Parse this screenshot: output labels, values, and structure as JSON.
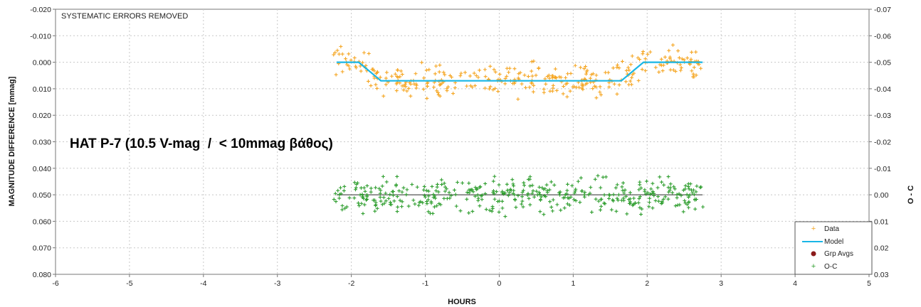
{
  "chart_data": {
    "type": "scatter",
    "corner_label": "SYSTEMATIC ERRORS REMOVED",
    "annotation": "HAT P-7 (10.5 V-mag  /  < 10mmag βάθος)",
    "xlabel": "HOURS",
    "ylabel": "MAGNITUDE DIFFERENCE [mmag]",
    "y2label": "O - C",
    "xlim": [
      -6,
      5
    ],
    "ylim": [
      -0.02,
      0.08
    ],
    "y2lim": [
      -0.07,
      0.03
    ],
    "y_inverted": true,
    "x_ticks": [
      "-6",
      "-5",
      "-4",
      "-3",
      "-2",
      "-1",
      "0",
      "1",
      "2",
      "3",
      "4",
      "5"
    ],
    "y_ticks": [
      "-0.020",
      "-0.010",
      "0.000",
      "0.010",
      "0.020",
      "0.030",
      "0.040",
      "0.050",
      "0.060",
      "0.070",
      "0.080"
    ],
    "y2_ticks": [
      "-0.07",
      "-0.06",
      "-0.05",
      "-0.04",
      "-0.03",
      "-0.02",
      "-0.01",
      "0.00",
      "0.01",
      "0.02",
      "0.03"
    ],
    "grid": true,
    "legend_position": "bottom-right",
    "series": [
      {
        "name": "Data",
        "kind": "scatter",
        "color": "#f5a623",
        "x_range": [
          -2.25,
          2.78
        ],
        "center": "model",
        "scatter": 0.005,
        "n": 340
      },
      {
        "name": "Model",
        "kind": "line",
        "color": "#19b6e6",
        "x": [
          -2.2,
          -1.9,
          -1.6,
          1.65,
          1.95,
          2.75
        ],
        "y": [
          0.0,
          0.0,
          0.007,
          0.007,
          0.0,
          0.0
        ]
      },
      {
        "name": "Grp Avgs",
        "kind": "marker",
        "color": "#8b1a1a"
      },
      {
        "name": "O-C",
        "kind": "scatter",
        "color": "#2f9e2f",
        "x_range": [
          -2.25,
          2.78
        ],
        "center": 0.0,
        "scatter": 0.0055,
        "n": 420,
        "axis": "y2"
      }
    ],
    "oc_zero_line": {
      "y2": 0.0,
      "x": [
        -2.2,
        2.75
      ],
      "color": "#555555"
    }
  }
}
